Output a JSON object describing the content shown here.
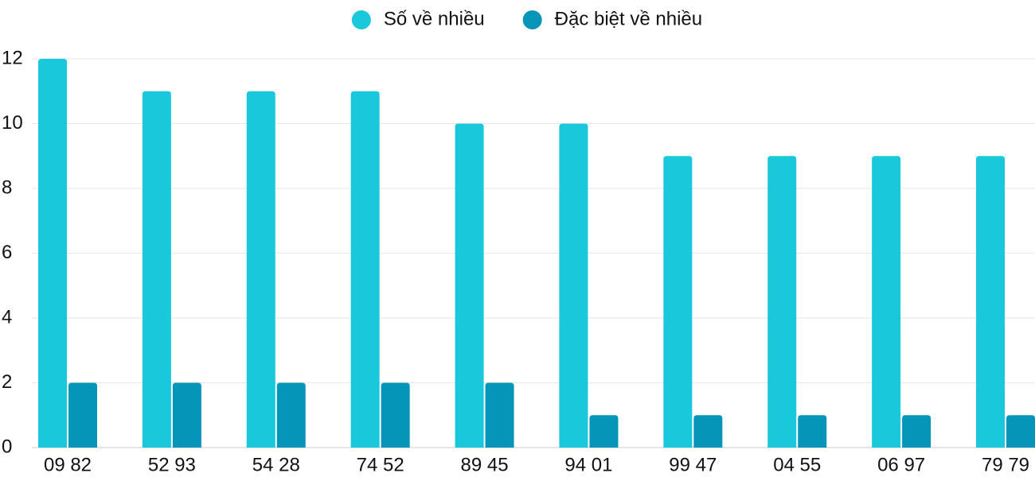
{
  "chart_data": {
    "type": "bar",
    "categories": [
      "09 82",
      "52 93",
      "54 28",
      "74 52",
      "89 45",
      "94 01",
      "99 47",
      "04 55",
      "06 97",
      "79 79"
    ],
    "series": [
      {
        "name": "Số về nhiều",
        "color": "#1ac8db",
        "values": [
          12,
          11,
          11,
          11,
          10,
          10,
          9,
          9,
          9,
          9
        ]
      },
      {
        "name": "Đặc biệt về nhiều",
        "color": "#0595b8",
        "values": [
          2,
          2,
          2,
          2,
          2,
          1,
          1,
          1,
          1,
          1
        ]
      }
    ],
    "ylim": [
      0,
      12
    ],
    "yticks": [
      0,
      2,
      4,
      6,
      8,
      10,
      12
    ],
    "grid": true,
    "legend": "top"
  }
}
